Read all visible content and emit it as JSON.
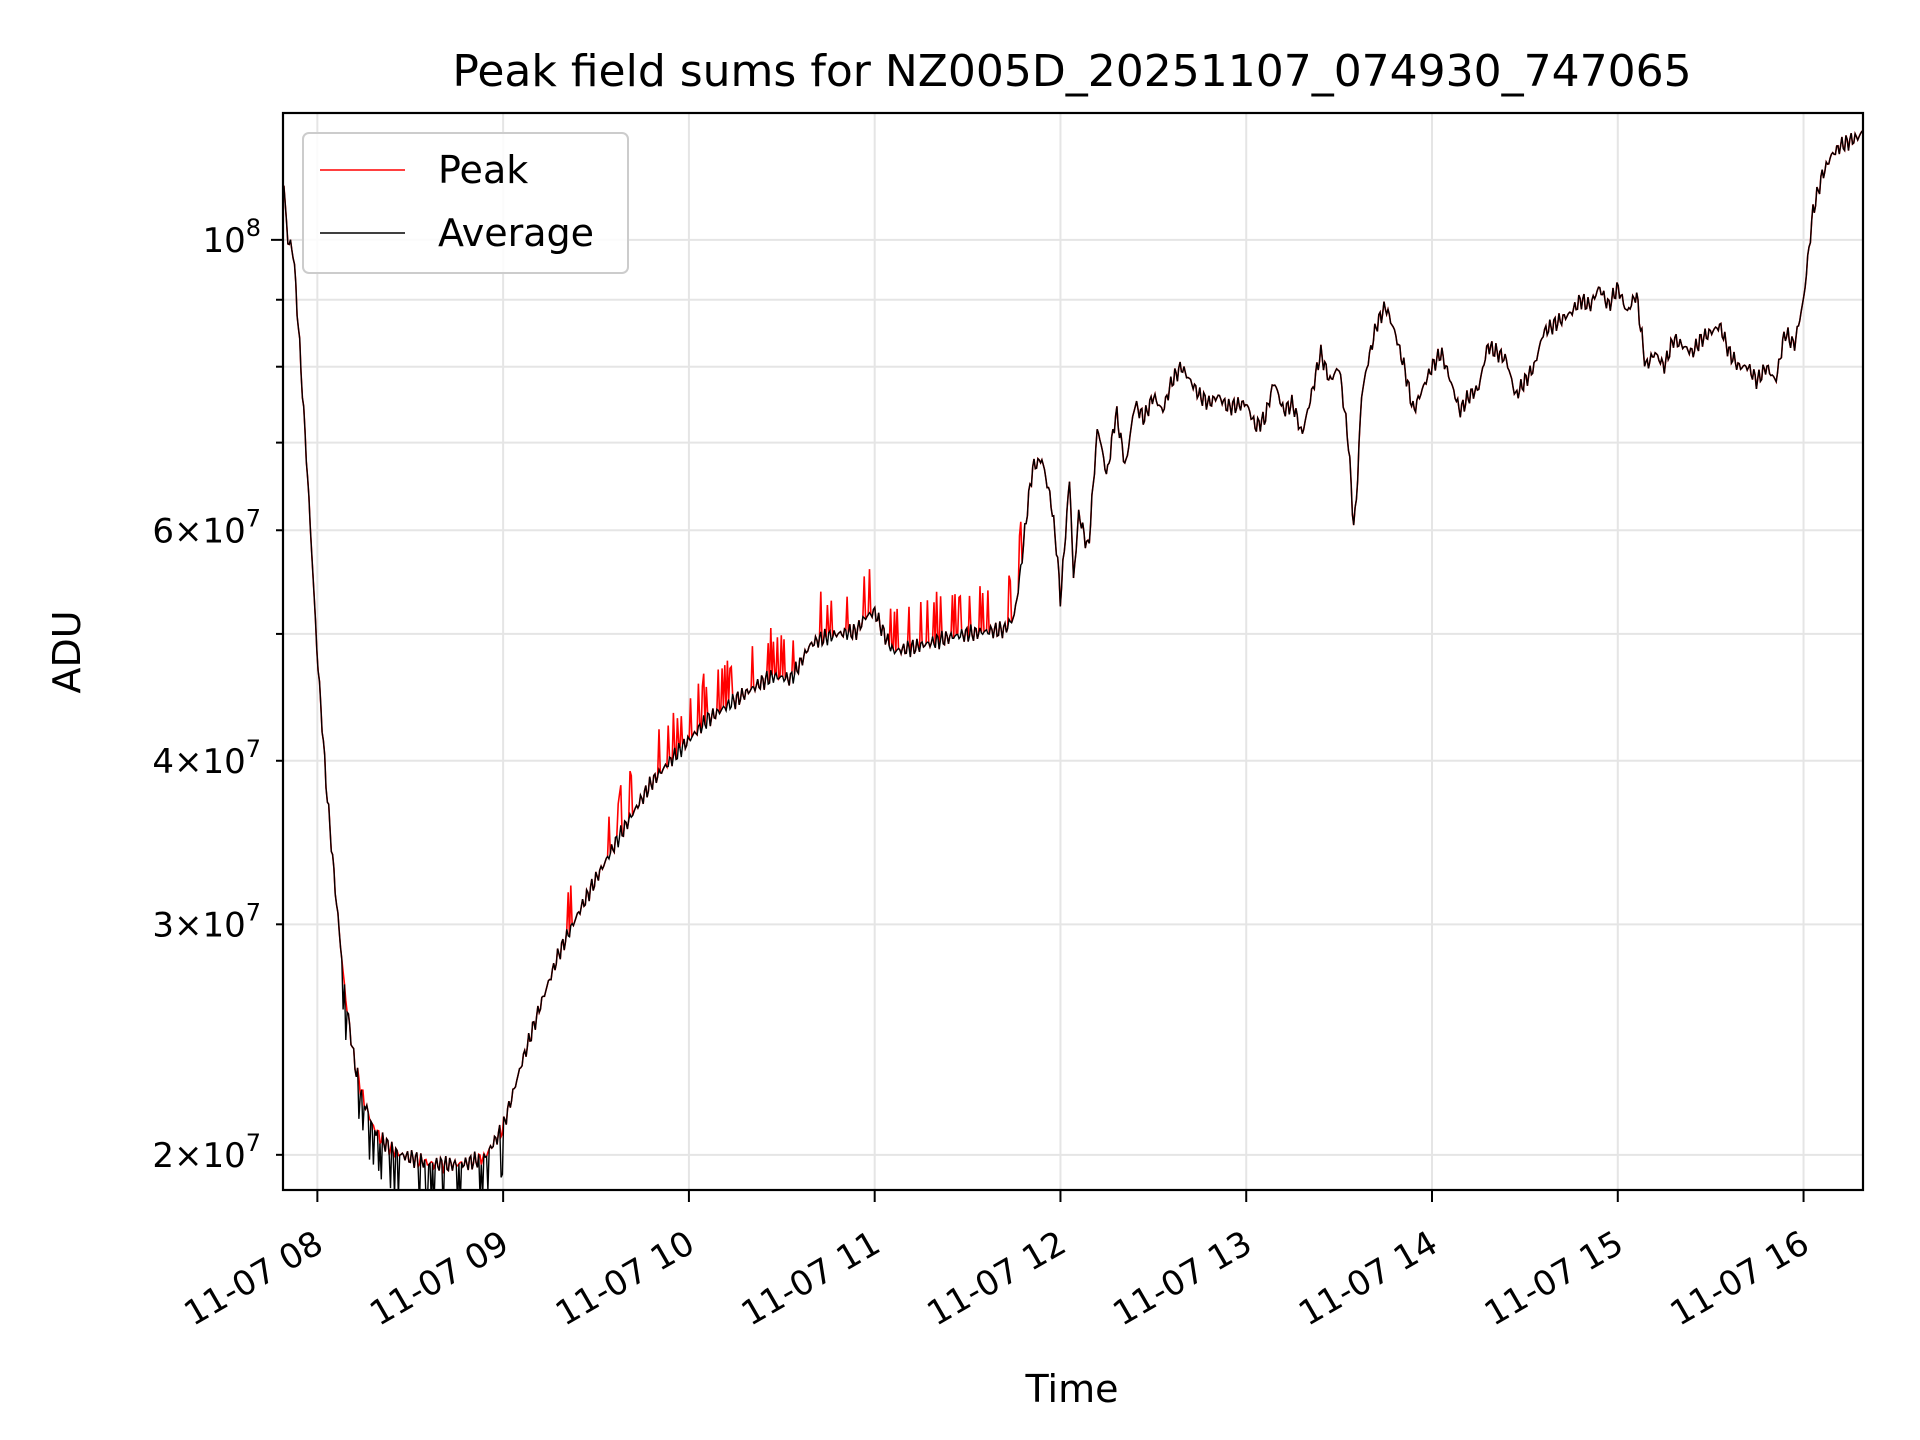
{
  "chart_data": {
    "type": "line",
    "title": "Peak field sums for NZ005D_20251107_074930_747065",
    "xlabel": "Time",
    "ylabel": "ADU",
    "x_tick_labels": [
      "11-07 08",
      "11-07 09",
      "11-07 10",
      "11-07 11",
      "11-07 12",
      "11-07 13",
      "11-07 14",
      "11-07 15",
      "11-07 16"
    ],
    "x_ticks_hours": [
      8,
      9,
      10,
      11,
      12,
      13,
      14,
      15,
      16
    ],
    "xlim_hours": [
      7.815,
      16.32
    ],
    "y_scale": "log",
    "ylim": [
      18800000,
      125000000
    ],
    "y_major_tick": {
      "value": 100000000,
      "mantissa": "",
      "exponent": "8"
    },
    "y_minor_ticks": [
      {
        "value": 20000000,
        "mantissa": "2",
        "exponent": "7"
      },
      {
        "value": 30000000,
        "mantissa": "3",
        "exponent": "7"
      },
      {
        "value": 40000000,
        "mantissa": "4",
        "exponent": "7"
      },
      {
        "value": 60000000,
        "mantissa": "6",
        "exponent": "7"
      }
    ],
    "y_unlabeled_minor_ticks": [
      50000000,
      70000000,
      80000000,
      90000000
    ],
    "grid": true,
    "legend_location": "upper-left",
    "series": [
      {
        "name": "Peak",
        "color": "#ff0000"
      },
      {
        "name": "Average",
        "color": "#000000"
      }
    ],
    "x_hours": [
      7.82,
      7.84,
      7.87,
      7.9,
      7.95,
      8.0,
      8.05,
      8.1,
      8.15,
      8.2,
      8.25,
      8.3,
      8.35,
      8.4,
      8.45,
      8.5,
      8.55,
      8.6,
      8.7,
      8.8,
      8.9,
      9.0,
      9.1,
      9.2,
      9.3,
      9.4,
      9.5,
      9.6,
      9.7,
      9.8,
      9.9,
      10.0,
      10.1,
      10.2,
      10.3,
      10.4,
      10.45,
      10.55,
      10.6,
      10.65,
      10.7,
      10.8,
      10.9,
      10.95,
      11.0,
      11.05,
      11.1,
      11.2,
      11.3,
      11.4,
      11.5,
      11.6,
      11.7,
      11.75,
      11.78,
      11.82,
      11.85,
      11.9,
      11.95,
      11.98,
      12.0,
      12.05,
      12.07,
      12.1,
      12.12,
      12.15,
      12.2,
      12.25,
      12.3,
      12.35,
      12.4,
      12.45,
      12.5,
      12.55,
      12.6,
      12.65,
      12.7,
      12.75,
      12.8,
      12.85,
      12.9,
      13.0,
      13.05,
      13.1,
      13.15,
      13.2,
      13.25,
      13.3,
      13.35,
      13.4,
      13.45,
      13.5,
      13.55,
      13.58,
      13.6,
      13.62,
      13.65,
      13.7,
      13.75,
      13.8,
      13.85,
      13.9,
      13.95,
      14.0,
      14.05,
      14.1,
      14.15,
      14.2,
      14.25,
      14.3,
      14.35,
      14.4,
      14.45,
      14.5,
      14.55,
      14.6,
      14.65,
      14.7,
      14.75,
      14.8,
      14.85,
      14.9,
      14.95,
      15.0,
      15.05,
      15.1,
      15.15,
      15.2,
      15.25,
      15.3,
      15.35,
      15.4,
      15.45,
      15.5,
      15.55,
      15.6,
      15.65,
      15.7,
      15.75,
      15.8,
      15.85,
      15.9,
      15.95,
      16.0,
      16.05,
      16.1,
      16.15,
      16.2,
      16.25,
      16.3,
      16.32
    ],
    "average_values": [
      110000000,
      100000000,
      98000000,
      85000000,
      65000000,
      48000000,
      38000000,
      31500000,
      26500000,
      23500000,
      22000000,
      21000000,
      20500000,
      20200000,
      20000000,
      19900000,
      19800000,
      19700000,
      19650000,
      19700000,
      19900000,
      21000000,
      23500000,
      26000000,
      28500000,
      30500000,
      32500000,
      34500000,
      36500000,
      38500000,
      40000000,
      41500000,
      43000000,
      44000000,
      45000000,
      46000000,
      46400000,
      46200000,
      47500000,
      49000000,
      49500000,
      50000000,
      50200000,
      51500000,
      52000000,
      50000000,
      48500000,
      48800000,
      49200000,
      49700000,
      50000000,
      50200000,
      50400000,
      51500000,
      55000000,
      62000000,
      67000000,
      68000000,
      63000000,
      58000000,
      53000000,
      66000000,
      55000000,
      62000000,
      60000000,
      58000000,
      72000000,
      66000000,
      74000000,
      67000000,
      75000000,
      73000000,
      76000000,
      74000000,
      78000000,
      80000000,
      78000000,
      76000000,
      75000000,
      76000000,
      74500000,
      75000000,
      72000000,
      73000000,
      78000000,
      74000000,
      75000000,
      71000000,
      76000000,
      82000000,
      78000000,
      80000000,
      70000000,
      60000000,
      66000000,
      76000000,
      80000000,
      86000000,
      89000000,
      85000000,
      80000000,
      74000000,
      77000000,
      80000000,
      82000000,
      78000000,
      74000000,
      76000000,
      77000000,
      83000000,
      82000000,
      81000000,
      76000000,
      78000000,
      80000000,
      85000000,
      86000000,
      87000000,
      88000000,
      90000000,
      89000000,
      92000000,
      89000000,
      92000000,
      88000000,
      91000000,
      80000000,
      82000000,
      80000000,
      84000000,
      83000000,
      82000000,
      84000000,
      85000000,
      86000000,
      82000000,
      80000000,
      80000000,
      78000000,
      80000000,
      78000000,
      85000000,
      83000000,
      90000000,
      105000000,
      112000000,
      116000000,
      118000000,
      119000000,
      120000000,
      121000000
    ]
  }
}
